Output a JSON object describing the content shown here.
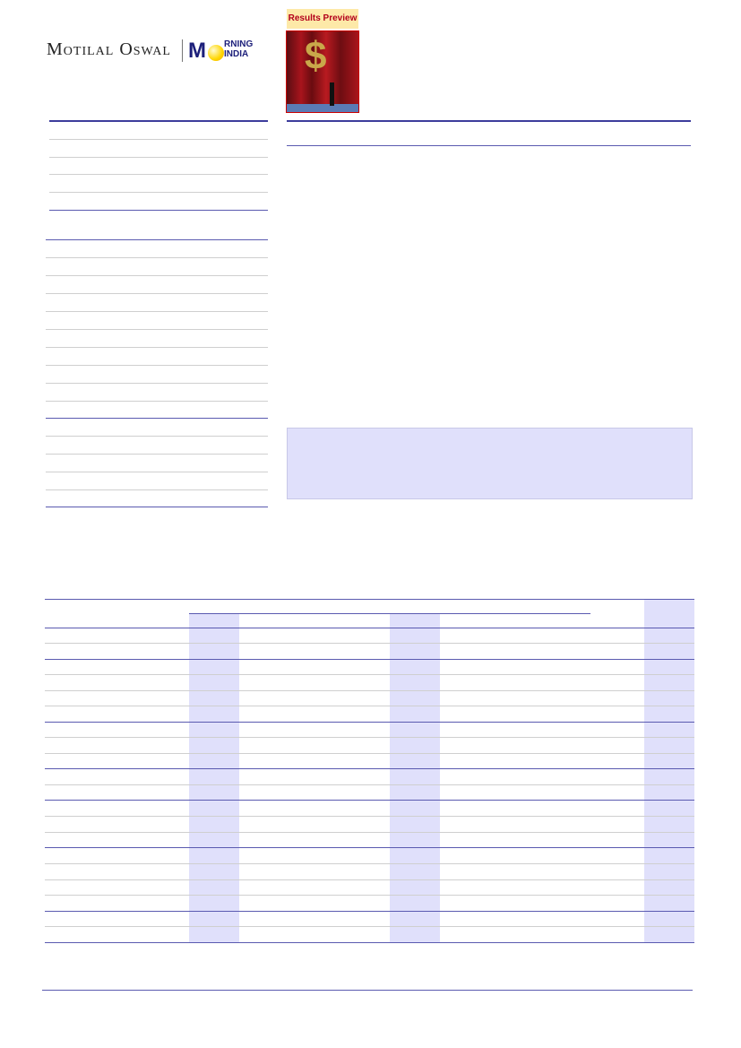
{
  "header": {
    "brand": "Motilal Oswal",
    "logo_m": "M",
    "logo_rning": "RNING",
    "logo_india": "INDIA",
    "badge": "Results Preview",
    "image_icon": "curtain-dollar-image"
  },
  "colors": {
    "accent": "#3c3c9c",
    "shade": "#e0e0fb",
    "badge_bg": "#fde9a8",
    "badge_text": "#b3001b"
  }
}
